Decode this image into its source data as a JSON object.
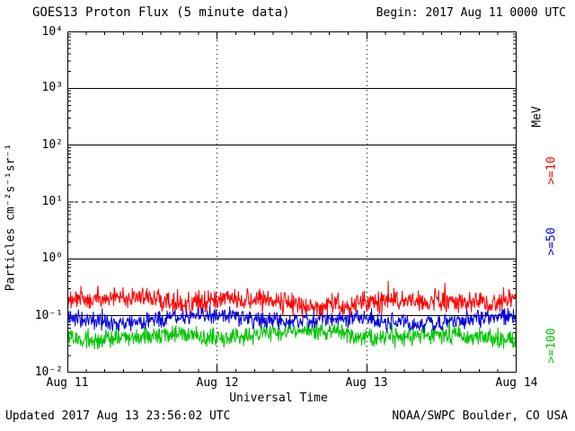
{
  "header": {
    "title": "GOES13 Proton Flux (5 minute data)",
    "begin": "Begin: 2017 Aug 11 0000 UTC"
  },
  "axes": {
    "ylabel": "Particles cm⁻²s⁻¹sr⁻¹",
    "xlabel": "Universal Time",
    "y_ticks": [
      "10⁴",
      "10³",
      "10²",
      "10¹",
      "10⁰",
      "10⁻¹",
      "10⁻²"
    ],
    "x_ticks": [
      "Aug 11",
      "Aug 12",
      "Aug 13",
      "Aug 14"
    ]
  },
  "right_labels": {
    "units": "MeV",
    "ge10": ">=10",
    "ge50": ">=50",
    "ge100": ">=100"
  },
  "footer": {
    "updated": "Updated 2017 Aug 13 23:56:02 UTC",
    "credit": "NOAA/SWPC Boulder, CO USA"
  },
  "chart_data": {
    "type": "line",
    "title": "GOES13 Proton Flux (5 minute data)",
    "x_start": "2017 Aug 11 0000 UTC",
    "x_end": "2017 Aug 14 0000 UTC",
    "x_days": 3,
    "cadence_minutes": 5,
    "xlabel": "Universal Time",
    "ylabel": "Particles cm⁻²s⁻¹sr⁻¹",
    "y_scale": "log10",
    "ylim": [
      0.01,
      10000
    ],
    "grid": {
      "solid_decades": [
        1000,
        100,
        1,
        0.1
      ],
      "dashed_decades": [
        10
      ],
      "vertical_day_lines": [
        "Aug 12",
        "Aug 13"
      ]
    },
    "series": [
      {
        "name": ">=10 MeV",
        "color": "#ff0000",
        "approx_base_flux": 0.18,
        "approx_min_flux": 0.1,
        "approx_max_flux": 0.38,
        "log_noise": 0.16,
        "seed": 42
      },
      {
        "name": ">=50 MeV",
        "color": "#0000dd",
        "approx_base_flux": 0.085,
        "approx_min_flux": 0.05,
        "approx_max_flux": 0.14,
        "log_noise": 0.12,
        "seed": 97
      },
      {
        "name": ">=100 MeV",
        "color": "#00c400",
        "approx_base_flux": 0.045,
        "approx_min_flux": 0.026,
        "approx_max_flux": 0.08,
        "log_noise": 0.13,
        "seed": 7
      }
    ]
  }
}
